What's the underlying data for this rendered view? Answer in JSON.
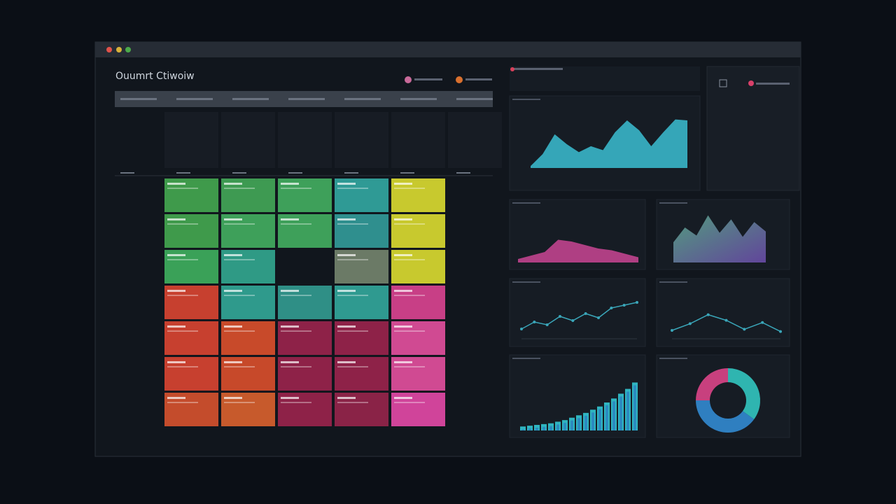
{
  "window": {
    "title": "Ouumrt Ctiwoiw"
  },
  "calendar": {
    "cells": [
      [
        "#3f9a4b",
        "#3e9a52",
        "#3ea05a",
        "#2f9a95",
        "#c8c92e"
      ],
      [
        "#3f9a4b",
        "#3ea05a",
        "#3ea05a",
        "#2f8f8e",
        "#c8c92e"
      ],
      [
        "#3aa158",
        "#2f9a85",
        null,
        "#6b7a66",
        "#c8c92e"
      ],
      [
        "#c7402f",
        "#2f9a8c",
        "#2f8f86",
        "#2f9a90",
        "#c83f86"
      ],
      [
        "#c7402f",
        "#c84a2a",
        "#8e2248",
        "#8e2248",
        "#d04a92"
      ],
      [
        "#c7402f",
        "#c7492a",
        "#8e2248",
        "#8e2248",
        "#d04a92"
      ],
      [
        "#c44c2c",
        "#c75a2c",
        "#8e2248",
        "#8a2347",
        "#d0449a"
      ]
    ]
  },
  "charts": [
    {
      "type": "area",
      "color": "#39b6c9",
      "ylim": [
        0,
        60
      ],
      "values": [
        2,
        14,
        34,
        24,
        16,
        22,
        18,
        36,
        48,
        38,
        22,
        36,
        49,
        48
      ]
    },
    {
      "type": "area",
      "color": "#c0448e",
      "ylim": [
        0,
        40
      ],
      "values": [
        4,
        8,
        12,
        26,
        24,
        20,
        16,
        14,
        10,
        6
      ]
    },
    {
      "type": "area",
      "color": "#4fa39a",
      "ylim": [
        0,
        80
      ],
      "values": [
        30,
        52,
        40,
        70,
        44,
        64,
        38,
        60,
        46
      ]
    },
    {
      "type": "line",
      "color": "#3aa6b9",
      "ylim": [
        0,
        60
      ],
      "values": [
        10,
        20,
        16,
        28,
        22,
        32,
        26,
        40,
        44,
        48
      ]
    },
    {
      "type": "line",
      "color": "#3aa6b9",
      "ylim": [
        0,
        50
      ],
      "values": [
        10,
        22,
        38,
        28,
        12,
        24,
        8
      ]
    },
    {
      "type": "bar",
      "color": "#2fb5c0",
      "ylim": [
        0,
        70
      ],
      "values": [
        5,
        6,
        7,
        8,
        9,
        11,
        13,
        16,
        19,
        22,
        26,
        30,
        35,
        40,
        46,
        52,
        60
      ]
    },
    {
      "type": "donut",
      "colors": [
        "#2fb5b0",
        "#2f7fc0",
        "#c8407e"
      ],
      "values": [
        35,
        40,
        25
      ]
    }
  ]
}
